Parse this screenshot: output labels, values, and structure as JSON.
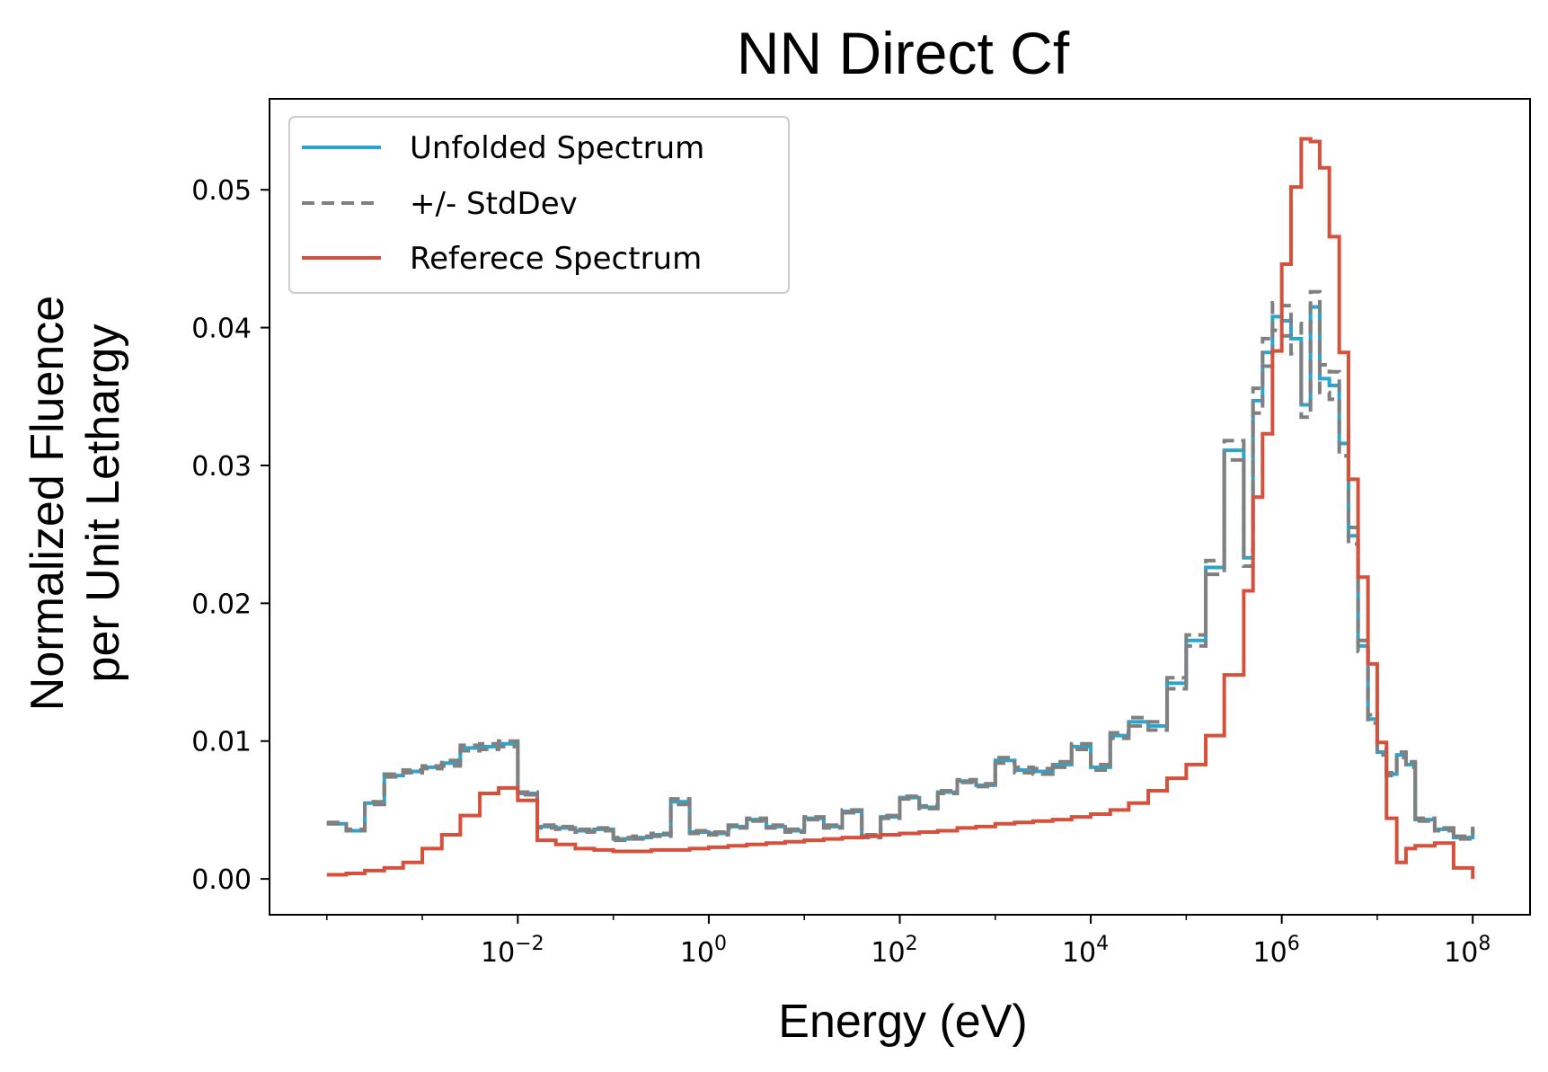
{
  "chart_data": {
    "type": "line",
    "title": "NN Direct Cf",
    "xlabel": "Energy (eV)",
    "ylabel": [
      "Normalized Fluence",
      "per Unit Lethargy"
    ],
    "xscale": "log",
    "xlim": [
      0.0001,
      100000000.0
    ],
    "ylim": [
      -0.0026,
      0.0566
    ],
    "grid": false,
    "legend_position": "top-left",
    "x_ticks": [
      {
        "exp": "−2",
        "value": 0.01
      },
      {
        "exp": "0",
        "value": 1
      },
      {
        "exp": "2",
        "value": 100
      },
      {
        "exp": "4",
        "value": 10000
      },
      {
        "exp": "6",
        "value": 1000000
      },
      {
        "exp": "8",
        "value": 100000000
      }
    ],
    "y_ticks": [
      "0.00",
      "0.01",
      "0.02",
      "0.03",
      "0.04",
      "0.05"
    ],
    "series": [
      {
        "name": "Unfolded Spectrum",
        "color": "#2ba5cf",
        "style": "solid",
        "step": true,
        "x": [
          0.0001,
          0.00016,
          0.00025,
          0.0004,
          0.00063,
          0.001,
          0.0016,
          0.0025,
          0.004,
          0.0063,
          0.01,
          0.016,
          0.025,
          0.04,
          0.063,
          0.1,
          0.16,
          0.25,
          0.4,
          0.63,
          1,
          1.6,
          2.5,
          4,
          6.3,
          10,
          16,
          25,
          40,
          63,
          100,
          160,
          250,
          400,
          630,
          1000,
          1600,
          2500,
          4000,
          6300,
          10000,
          16000,
          25000,
          40000,
          63000,
          100000,
          160000,
          250000,
          400000,
          500000,
          630000,
          800000,
          1000000,
          1250000,
          1600000,
          2000000,
          2500000,
          3150000,
          4000000,
          5000000,
          6300000,
          8000000,
          10000000,
          12500000,
          16000000,
          20000000,
          25000000,
          40000000,
          63000000,
          100000000
        ],
        "y": [
          0.004,
          0.0035,
          0.0055,
          0.0075,
          0.0078,
          0.0081,
          0.0084,
          0.0095,
          0.0096,
          0.0098,
          0.0062,
          0.0038,
          0.0037,
          0.0035,
          0.0036,
          0.0029,
          0.003,
          0.0032,
          0.0056,
          0.0034,
          0.0033,
          0.0038,
          0.0043,
          0.0038,
          0.0035,
          0.0044,
          0.0038,
          0.0049,
          0.0031,
          0.0045,
          0.0059,
          0.0052,
          0.0063,
          0.0071,
          0.0068,
          0.0086,
          0.0079,
          0.0078,
          0.0083,
          0.0096,
          0.0081,
          0.0104,
          0.0114,
          0.0111,
          0.0142,
          0.0173,
          0.0226,
          0.0311,
          0.0233,
          0.0347,
          0.0382,
          0.0408,
          0.0405,
          0.0392,
          0.0344,
          0.0415,
          0.0363,
          0.0358,
          0.0316,
          0.0249,
          0.0169,
          0.0116,
          0.0092,
          0.0076,
          0.009,
          0.0083,
          0.0043,
          0.0036,
          0.003,
          0.0037
        ],
        "lower": [
          0.004,
          0.0035,
          0.0054,
          0.0074,
          0.0077,
          0.008,
          0.0082,
          0.0093,
          0.0094,
          0.0096,
          0.0061,
          0.0037,
          0.0036,
          0.0034,
          0.0035,
          0.0028,
          0.0029,
          0.0031,
          0.0054,
          0.0033,
          0.0032,
          0.0037,
          0.0042,
          0.0037,
          0.0034,
          0.0043,
          0.0037,
          0.0048,
          0.003,
          0.0044,
          0.0058,
          0.0051,
          0.0062,
          0.007,
          0.0067,
          0.0084,
          0.0077,
          0.0076,
          0.0081,
          0.0094,
          0.0079,
          0.0102,
          0.0111,
          0.0108,
          0.0138,
          0.0169,
          0.0221,
          0.0304,
          0.0227,
          0.0338,
          0.0372,
          0.0398,
          0.0394,
          0.0381,
          0.0335,
          0.0404,
          0.0353,
          0.0348,
          0.0307,
          0.0243,
          0.0165,
          0.0113,
          0.009,
          0.0075,
          0.0088,
          0.0081,
          0.0042,
          0.0035,
          0.0029,
          0.0036
        ],
        "upper": [
          0.0041,
          0.0036,
          0.0056,
          0.0076,
          0.0079,
          0.0082,
          0.0086,
          0.0097,
          0.0098,
          0.01,
          0.0063,
          0.0039,
          0.0038,
          0.0036,
          0.0037,
          0.003,
          0.0031,
          0.0033,
          0.0058,
          0.0035,
          0.0034,
          0.0039,
          0.0044,
          0.0039,
          0.0036,
          0.0045,
          0.0039,
          0.005,
          0.0032,
          0.0046,
          0.006,
          0.0053,
          0.0064,
          0.0072,
          0.0069,
          0.0088,
          0.0081,
          0.008,
          0.0085,
          0.0098,
          0.0083,
          0.0106,
          0.0117,
          0.0114,
          0.0146,
          0.0177,
          0.0231,
          0.0318,
          0.0239,
          0.0356,
          0.0392,
          0.0418,
          0.0416,
          0.0403,
          0.0353,
          0.0426,
          0.0373,
          0.0368,
          0.0325,
          0.0255,
          0.0173,
          0.0119,
          0.0094,
          0.0077,
          0.0092,
          0.0085,
          0.0044,
          0.0037,
          0.0031,
          0.0038
        ]
      },
      {
        "name": "+/- StdDev",
        "color": "#808080",
        "style": "dashed",
        "legend_only": true
      },
      {
        "name": "Referece Spectrum",
        "color": "#d6513c",
        "style": "solid",
        "step": true,
        "x": [
          0.0001,
          0.00016,
          0.00025,
          0.0004,
          0.00063,
          0.001,
          0.0016,
          0.0025,
          0.004,
          0.0063,
          0.01,
          0.016,
          0.025,
          0.04,
          0.063,
          0.1,
          0.16,
          0.25,
          0.4,
          0.63,
          1,
          1.6,
          2.5,
          4,
          6.3,
          10,
          16,
          25,
          40,
          63,
          100,
          160,
          250,
          400,
          630,
          1000,
          1600,
          2500,
          4000,
          6300,
          10000,
          16000,
          25000,
          40000,
          63000,
          100000,
          160000,
          250000,
          400000,
          500000,
          630000,
          800000,
          1000000,
          1250000,
          1600000,
          2000000,
          2500000,
          3150000,
          4000000,
          5000000,
          6300000,
          8000000,
          10000000,
          12500000,
          16000000,
          20000000,
          25000000,
          40000000,
          63000000,
          100000000
        ],
        "y": [
          0.0003,
          0.0004,
          0.0006,
          0.0008,
          0.0012,
          0.0022,
          0.0032,
          0.0046,
          0.0062,
          0.0066,
          0.0057,
          0.0028,
          0.0025,
          0.0022,
          0.0021,
          0.002,
          0.002,
          0.0021,
          0.0021,
          0.0022,
          0.0023,
          0.0024,
          0.0025,
          0.0026,
          0.0027,
          0.0028,
          0.0029,
          0.003,
          0.0031,
          0.0032,
          0.0033,
          0.0034,
          0.0035,
          0.0037,
          0.0038,
          0.004,
          0.0041,
          0.0042,
          0.0043,
          0.0045,
          0.0047,
          0.005,
          0.0055,
          0.0064,
          0.0073,
          0.0083,
          0.0104,
          0.0148,
          0.0209,
          0.0277,
          0.0323,
          0.0383,
          0.0446,
          0.0502,
          0.0537,
          0.0535,
          0.0516,
          0.0466,
          0.0382,
          0.029,
          0.0219,
          0.0156,
          0.0099,
          0.0044,
          0.0012,
          0.0022,
          0.0024,
          0.0026,
          0.0008,
          0.0
        ],
        "x_end": 100000000
      }
    ]
  }
}
